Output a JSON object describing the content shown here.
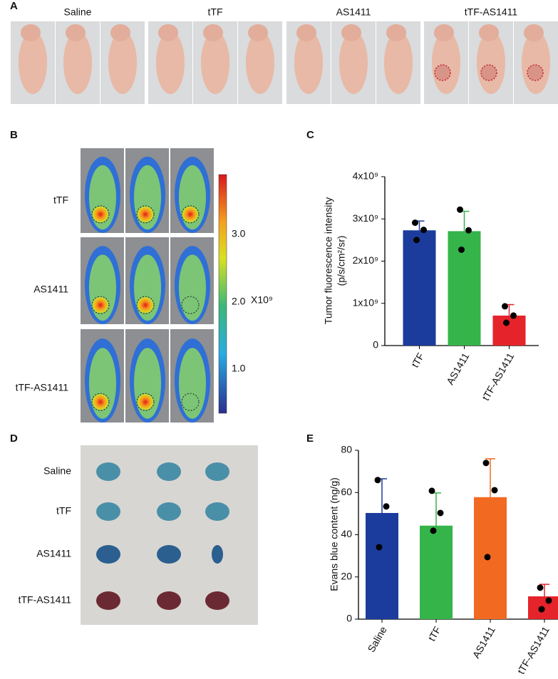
{
  "panels": {
    "A": {
      "label": "A",
      "groups": [
        "Saline",
        "tTF",
        "AS1411",
        "tTF-AS1411"
      ]
    },
    "B": {
      "label": "B",
      "rows": [
        "tTF",
        "AS1411",
        "tTF-AS1411"
      ],
      "colorbar": {
        "ticks": [
          "3.0",
          "2.0",
          "1.0"
        ],
        "unit": "X10⁹"
      }
    },
    "D": {
      "label": "D",
      "rows": [
        "Saline",
        "tTF",
        "AS1411",
        "tTF-AS1411"
      ]
    }
  },
  "chart_data": [
    {
      "panel": "C",
      "type": "bar",
      "y_label": [
        "Tumor fluorescence intensity",
        "(p/s/cm²/sr)"
      ],
      "categories": [
        "tTF",
        "AS1411",
        "tTF-AS1411"
      ],
      "values": [
        2730000000,
        2710000000,
        710000000
      ],
      "errors": [
        220000000,
        470000000,
        260000000
      ],
      "points": [
        [
          2910000000,
          2740000000,
          2500000000
        ],
        [
          3220000000,
          2730000000,
          2270000000
        ],
        [
          930000000,
          710000000,
          540000000
        ]
      ],
      "colors": [
        "#1b3c9c",
        "#35b44a",
        "#e5232a"
      ],
      "ylim": [
        0,
        4000000000
      ],
      "yticks": [
        0,
        {
          "value": 1000000000,
          "label": "1x10⁹"
        },
        {
          "value": 2000000000,
          "label": "2x10⁹"
        },
        {
          "value": 3000000000,
          "label": "3x10⁹"
        },
        {
          "value": 4000000000,
          "label": "4x10⁹"
        }
      ]
    },
    {
      "panel": "E",
      "type": "bar",
      "y_label": "Evans blue content (ng/g)",
      "categories": [
        "Saline",
        "tTF",
        "AS1411",
        "tTF-AS1411"
      ],
      "values": [
        50.3,
        44.3,
        57.8,
        10.8
      ],
      "errors": [
        16.2,
        15.5,
        18.2,
        5.7
      ],
      "points": [
        [
          65.9,
          53.4,
          34.1
        ],
        [
          60.8,
          50.3,
          41.9
        ],
        [
          74.0,
          61.1,
          29.4
        ],
        [
          14.9,
          8.8,
          4.7
        ]
      ],
      "colors": [
        "#1b3c9c",
        "#35b44a",
        "#f26a21",
        "#e5232a"
      ],
      "ylim": [
        0,
        80
      ],
      "yticks": [
        0,
        20,
        40,
        60,
        80
      ]
    }
  ]
}
